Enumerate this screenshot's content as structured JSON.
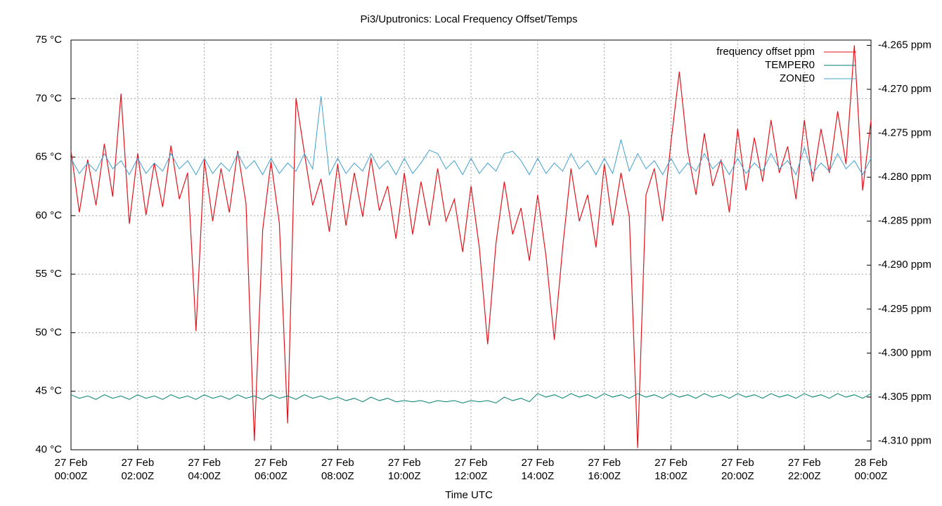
{
  "chart_data": {
    "type": "line",
    "title": "Pi3/Uputronics: Local Frequency Offset/Temps",
    "xlabel": "Time UTC",
    "grid": true,
    "legend": "top-right",
    "xlim": [
      0,
      24
    ],
    "xticks": [
      {
        "value": 0,
        "label": "27 Feb\n00:00Z"
      },
      {
        "value": 2,
        "label": "27 Feb\n02:00Z"
      },
      {
        "value": 4,
        "label": "27 Feb\n04:00Z"
      },
      {
        "value": 6,
        "label": "27 Feb\n06:00Z"
      },
      {
        "value": 8,
        "label": "27 Feb\n08:00Z"
      },
      {
        "value": 10,
        "label": "27 Feb\n10:00Z"
      },
      {
        "value": 12,
        "label": "27 Feb\n12:00Z"
      },
      {
        "value": 14,
        "label": "27 Feb\n14:00Z"
      },
      {
        "value": 16,
        "label": "27 Feb\n16:00Z"
      },
      {
        "value": 18,
        "label": "27 Feb\n18:00Z"
      },
      {
        "value": 20,
        "label": "27 Feb\n20:00Z"
      },
      {
        "value": 22,
        "label": "27 Feb\n22:00Z"
      },
      {
        "value": 24,
        "label": "28 Feb\n00:00Z"
      }
    ],
    "ylim": [
      40,
      75
    ],
    "yticks": [
      {
        "value": 40,
        "label": "40 °C"
      },
      {
        "value": 45,
        "label": "45 °C"
      },
      {
        "value": 50,
        "label": "50 °C"
      },
      {
        "value": 55,
        "label": "55 °C"
      },
      {
        "value": 60,
        "label": "60 °C"
      },
      {
        "value": 65,
        "label": "65 °C"
      },
      {
        "value": 70,
        "label": "70 °C"
      },
      {
        "value": 75,
        "label": "75 °C"
      }
    ],
    "y_color": "#1a5fa8",
    "y2lim": [
      -4.311,
      -4.2644
    ],
    "y2ticks": [
      {
        "value": -4.31,
        "label": "-4.310 ppm"
      },
      {
        "value": -4.305,
        "label": "-4.305 ppm"
      },
      {
        "value": -4.3,
        "label": "-4.300 ppm"
      },
      {
        "value": -4.295,
        "label": "-4.295 ppm"
      },
      {
        "value": -4.29,
        "label": "-4.290 ppm"
      },
      {
        "value": -4.285,
        "label": "-4.285 ppm"
      },
      {
        "value": -4.28,
        "label": "-4.280 ppm"
      },
      {
        "value": -4.275,
        "label": "-4.275 ppm"
      },
      {
        "value": -4.27,
        "label": "-4.270 ppm"
      },
      {
        "value": -4.265,
        "label": "-4.265 ppm"
      }
    ],
    "y2_color": "#e0141c",
    "x": [
      0,
      0.25,
      0.5,
      0.75,
      1,
      1.25,
      1.5,
      1.75,
      2,
      2.25,
      2.5,
      2.75,
      3,
      3.25,
      3.5,
      3.75,
      4,
      4.25,
      4.5,
      4.75,
      5,
      5.25,
      5.5,
      5.75,
      6,
      6.25,
      6.5,
      6.75,
      7,
      7.25,
      7.5,
      7.75,
      8,
      8.25,
      8.5,
      8.75,
      9,
      9.25,
      9.5,
      9.75,
      10,
      10.25,
      10.5,
      10.75,
      11,
      11.25,
      11.5,
      11.75,
      12,
      12.25,
      12.5,
      12.75,
      13,
      13.25,
      13.5,
      13.75,
      14,
      14.25,
      14.5,
      14.75,
      15,
      15.25,
      15.5,
      15.75,
      16,
      16.25,
      16.5,
      16.75,
      17,
      17.25,
      17.5,
      17.75,
      18,
      18.25,
      18.5,
      18.75,
      19,
      19.25,
      19.5,
      19.75,
      20,
      20.25,
      20.5,
      20.75,
      21,
      21.25,
      21.5,
      21.75,
      22,
      22.25,
      22.5,
      22.75,
      23,
      23.25,
      23.5,
      23.75,
      24
    ],
    "series": [
      {
        "name": "frequency offset ppm",
        "color": "#e0141c",
        "axis": "y2",
        "width": 1.2,
        "values": [
          -4.277,
          -4.284,
          -4.278,
          -4.2832,
          -4.2762,
          -4.2822,
          -4.2705,
          -4.2853,
          -4.2773,
          -4.2843,
          -4.2784,
          -4.2834,
          -4.2764,
          -4.2825,
          -4.2795,
          -4.2975,
          -4.278,
          -4.285,
          -4.279,
          -4.284,
          -4.277,
          -4.283,
          -4.31,
          -4.286,
          -4.2782,
          -4.2852,
          -4.308,
          -4.271,
          -4.2772,
          -4.2832,
          -4.2802,
          -4.2862,
          -4.2785,
          -4.2855,
          -4.2795,
          -4.2845,
          -4.2778,
          -4.2838,
          -4.281,
          -4.287,
          -4.2795,
          -4.2865,
          -4.2805,
          -4.2855,
          -4.279,
          -4.285,
          -4.2825,
          -4.2885,
          -4.281,
          -4.288,
          -4.299,
          -4.2875,
          -4.2805,
          -4.2865,
          -4.2835,
          -4.2895,
          -4.282,
          -4.289,
          -4.2985,
          -4.288,
          -4.279,
          -4.285,
          -4.282,
          -4.288,
          -4.2785,
          -4.2855,
          -4.2795,
          -4.2845,
          -4.3108,
          -4.282,
          -4.279,
          -4.285,
          -4.276,
          -4.268,
          -4.277,
          -4.282,
          -4.275,
          -4.281,
          -4.278,
          -4.284,
          -4.2745,
          -4.2815,
          -4.2755,
          -4.2805,
          -4.2735,
          -4.2795,
          -4.2765,
          -4.2825,
          -4.2735,
          -4.2805,
          -4.2745,
          -4.2795,
          -4.2725,
          -4.2785,
          -4.265,
          -4.2815,
          -4.2735
        ]
      },
      {
        "name": "TEMPER0",
        "color": "#00806e",
        "width": 1,
        "values": [
          44.7,
          44.4,
          44.6,
          44.3,
          44.7,
          44.4,
          44.6,
          44.3,
          44.7,
          44.4,
          44.6,
          44.3,
          44.7,
          44.4,
          44.6,
          44.3,
          44.7,
          44.4,
          44.6,
          44.3,
          44.7,
          44.4,
          44.6,
          44.3,
          44.7,
          44.4,
          44.6,
          44.3,
          44.7,
          44.4,
          44.6,
          44.3,
          44.5,
          44.2,
          44.4,
          44.1,
          44.5,
          44.2,
          44.4,
          44.1,
          44.2,
          44.1,
          44.2,
          44.0,
          44.2,
          44.1,
          44.2,
          44.0,
          44.2,
          44.1,
          44.2,
          44.0,
          44.5,
          44.2,
          44.4,
          44.1,
          44.8,
          44.5,
          44.7,
          44.4,
          44.8,
          44.5,
          44.7,
          44.4,
          44.8,
          44.5,
          44.7,
          44.4,
          44.8,
          44.5,
          44.7,
          44.4,
          44.8,
          44.5,
          44.7,
          44.4,
          44.8,
          44.5,
          44.7,
          44.4,
          44.8,
          44.5,
          44.7,
          44.4,
          44.8,
          44.5,
          44.7,
          44.4,
          44.8,
          44.5,
          44.7,
          44.4,
          44.8,
          44.5,
          44.7,
          44.4,
          44.8
        ]
      },
      {
        "name": "ZONE0",
        "color": "#3fa0d0",
        "width": 1,
        "values": [
          64.9,
          63.6,
          64.5,
          63.8,
          65.3,
          64.0,
          64.7,
          63.5,
          64.9,
          63.6,
          64.5,
          63.8,
          65.3,
          64.0,
          64.7,
          63.5,
          64.9,
          63.6,
          64.5,
          63.8,
          65.3,
          64.0,
          64.7,
          63.5,
          64.9,
          63.6,
          64.5,
          63.8,
          65.3,
          64.0,
          70.2,
          63.5,
          64.9,
          63.6,
          64.5,
          63.8,
          65.3,
          64.0,
          64.7,
          63.5,
          64.9,
          63.6,
          64.5,
          65.6,
          65.3,
          64.0,
          64.7,
          63.5,
          64.9,
          63.6,
          64.5,
          63.8,
          65.3,
          65.5,
          64.7,
          63.5,
          64.9,
          63.6,
          64.5,
          63.8,
          65.3,
          64.0,
          64.7,
          63.5,
          64.9,
          63.6,
          66.5,
          63.8,
          65.3,
          64.0,
          64.7,
          63.5,
          64.9,
          63.6,
          64.5,
          63.8,
          65.3,
          64.0,
          64.7,
          63.5,
          64.9,
          63.6,
          64.5,
          63.8,
          65.3,
          64.0,
          64.7,
          63.5,
          65.8,
          63.6,
          64.5,
          63.8,
          65.3,
          64.0,
          64.7,
          63.5,
          64.9
        ]
      }
    ]
  }
}
